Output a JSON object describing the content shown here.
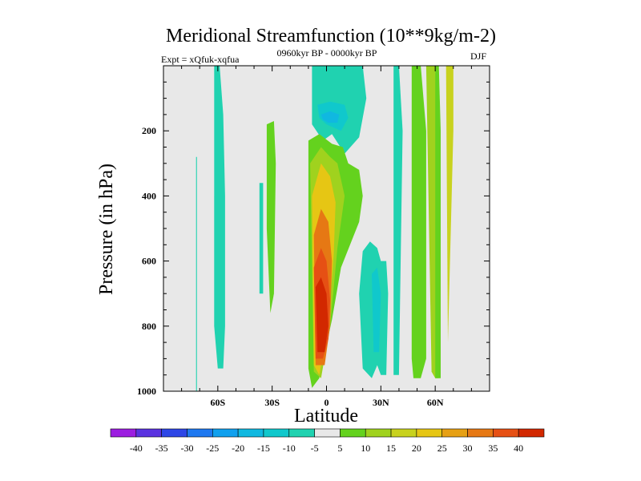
{
  "chart_data": {
    "type": "contour",
    "title": "Meridional Streamfunction (10**9kg/m-2)",
    "subtitle_left": "Expt = xQfuk-xqfua",
    "subtitle_center": "0960kyr BP - 0000kyr BP",
    "subtitle_right": "DJF",
    "xlabel": "Latitude",
    "ylabel": "Pressure (in hPa)",
    "xlim": [
      -90,
      90
    ],
    "ylim": [
      1000,
      0
    ],
    "x_ticks": [
      {
        "value": -60,
        "label": "60S"
      },
      {
        "value": -30,
        "label": "30S"
      },
      {
        "value": 0,
        "label": "0"
      },
      {
        "value": 30,
        "label": "30N"
      },
      {
        "value": 60,
        "label": "60N"
      }
    ],
    "y_ticks": [
      {
        "value": 200,
        "label": "200"
      },
      {
        "value": 400,
        "label": "400"
      },
      {
        "value": 600,
        "label": "600"
      },
      {
        "value": 800,
        "label": "800"
      },
      {
        "value": 1000,
        "label": "1000"
      }
    ],
    "background_color": "#e8e8e8",
    "colorbar": {
      "labels": [
        "-40",
        "-35",
        "-30",
        "-25",
        "-20",
        "-15",
        "-10",
        "-5",
        "5",
        "10",
        "15",
        "20",
        "25",
        "30",
        "35",
        "40"
      ],
      "colors": [
        "#9c1ee0",
        "#5a32e0",
        "#2d46e6",
        "#1e78f0",
        "#10a0ee",
        "#10b8e0",
        "#10c8cc",
        "#20d2b0",
        "#e8e8e8",
        "#64d21e",
        "#a0d21e",
        "#c8d21e",
        "#e6c614",
        "#e6a014",
        "#e67814",
        "#e65014",
        "#d22800"
      ]
    },
    "regions": [
      {
        "name": "cyan-band-70s",
        "level": -5,
        "lat": [
          -72,
          -71.5,
          -71.5,
          -72
        ],
        "p": [
          280,
          280,
          1000,
          1000
        ]
      },
      {
        "name": "cyan-band-60s",
        "level": -5,
        "lat": [
          -62,
          -59,
          -57,
          -56,
          -56,
          -57,
          -60,
          -62
        ],
        "p": [
          0,
          0,
          150,
          400,
          800,
          930,
          930,
          800
        ]
      },
      {
        "name": "cyan-band-35s",
        "level": -5,
        "lat": [
          -37,
          -36,
          -35,
          -35,
          -37
        ],
        "p": [
          360,
          360,
          360,
          700,
          700
        ]
      },
      {
        "name": "green-band-30s",
        "level": 5,
        "lat": [
          -33,
          -29,
          -28,
          -29,
          -31,
          -33
        ],
        "p": [
          180,
          170,
          300,
          700,
          760,
          500
        ]
      },
      {
        "name": "cyan-upper-0",
        "level": -5,
        "lat": [
          -8,
          0,
          12,
          20,
          22,
          18,
          10,
          3,
          -2,
          -8
        ],
        "p": [
          0,
          0,
          0,
          0,
          100,
          220,
          270,
          210,
          230,
          180
        ]
      },
      {
        "name": "cyan-core-0",
        "level": -10,
        "lat": [
          -5,
          2,
          10,
          12,
          8,
          0,
          -4
        ],
        "p": [
          120,
          110,
          120,
          160,
          200,
          180,
          160
        ]
      },
      {
        "name": "cyan-core-0b",
        "level": -15,
        "lat": [
          -3,
          2,
          7,
          6,
          1,
          -2
        ],
        "p": [
          150,
          140,
          150,
          175,
          175,
          165
        ]
      },
      {
        "name": "green-cell-0",
        "level": 5,
        "lat": [
          -10,
          -4,
          3,
          9,
          12,
          18,
          20,
          18,
          8,
          3,
          -4,
          -8,
          -10
        ],
        "p": [
          230,
          210,
          240,
          250,
          300,
          320,
          400,
          480,
          620,
          780,
          960,
          990,
          930
        ]
      },
      {
        "name": "cell-10",
        "level": 10,
        "lat": [
          -9,
          -3,
          2,
          6,
          10,
          6,
          2,
          -3,
          -7
        ],
        "p": [
          300,
          250,
          280,
          300,
          400,
          560,
          800,
          960,
          940
        ]
      },
      {
        "name": "cell-20",
        "level": 20,
        "lat": [
          -8,
          -3,
          2,
          5,
          4,
          1,
          -4,
          -7
        ],
        "p": [
          400,
          300,
          340,
          420,
          580,
          800,
          950,
          920
        ]
      },
      {
        "name": "cell-30",
        "level": 30,
        "lat": [
          -7,
          -3,
          1,
          3,
          2,
          -1,
          -6
        ],
        "p": [
          520,
          440,
          480,
          600,
          800,
          920,
          920
        ]
      },
      {
        "name": "cell-35",
        "level": 35,
        "lat": [
          -7,
          -3,
          0,
          2,
          1,
          -2,
          -6
        ],
        "p": [
          620,
          560,
          600,
          720,
          840,
          900,
          900
        ]
      },
      {
        "name": "cell-40",
        "level": 40,
        "lat": [
          -6,
          -3,
          0,
          1,
          -1,
          -5
        ],
        "p": [
          680,
          650,
          700,
          800,
          880,
          880
        ]
      },
      {
        "name": "cyan-30n",
        "level": -5,
        "lat": [
          20,
          24,
          28,
          30,
          33,
          34,
          33,
          30,
          28,
          25,
          20,
          18
        ],
        "p": [
          570,
          540,
          560,
          600,
          600,
          700,
          950,
          950,
          920,
          960,
          930,
          700
        ]
      },
      {
        "name": "cyan-25n",
        "level": -10,
        "lat": [
          25,
          28,
          30,
          29,
          26
        ],
        "p": [
          640,
          620,
          700,
          880,
          880
        ]
      },
      {
        "name": "cyan-40n",
        "level": -5,
        "lat": [
          37,
          40,
          42,
          40,
          37
        ],
        "p": [
          0,
          0,
          200,
          950,
          950
        ]
      },
      {
        "name": "green-50n",
        "level": 5,
        "lat": [
          47,
          52,
          55,
          55,
          52,
          48,
          47
        ],
        "p": [
          0,
          0,
          200,
          900,
          960,
          960,
          900
        ]
      },
      {
        "name": "green-60n",
        "level": 10,
        "lat": [
          55,
          60,
          62,
          62,
          60,
          58
        ],
        "p": [
          0,
          0,
          400,
          960,
          960,
          940
        ]
      },
      {
        "name": "green-65n",
        "level": 15,
        "lat": [
          66,
          70,
          70,
          67
        ],
        "p": [
          0,
          0,
          200,
          850
        ]
      },
      {
        "name": "green-70n",
        "level": 5,
        "lat": [
          60,
          62,
          63,
          63,
          60
        ],
        "p": [
          0,
          0,
          200,
          960,
          960
        ]
      }
    ]
  }
}
